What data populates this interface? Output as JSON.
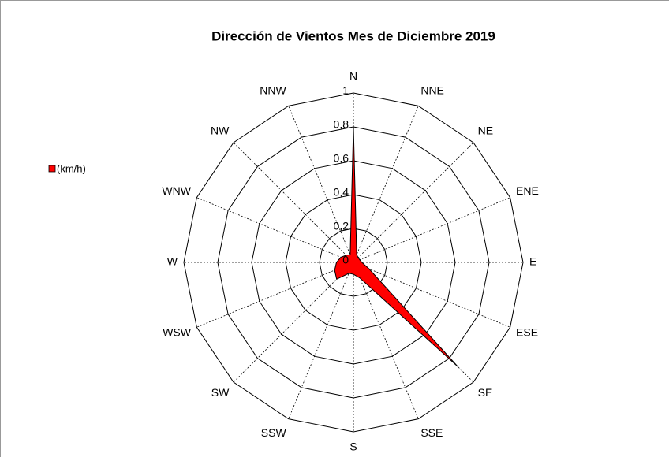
{
  "chart_data": {
    "type": "radar",
    "title": "Dirección de Vientos Mes de Diciembre 2019",
    "categories": [
      "N",
      "NNE",
      "NE",
      "ENE",
      "E",
      "ESE",
      "SE",
      "SSE",
      "S",
      "SSW",
      "SW",
      "WSW",
      "W",
      "WNW",
      "NW",
      "NNW"
    ],
    "series": [
      {
        "name": "(km/h)",
        "color": "#ff0000",
        "values": [
          0.8,
          0.05,
          0.04,
          0.04,
          0.05,
          0.1,
          0.87,
          0.1,
          0.07,
          0.07,
          0.14,
          0.12,
          0.1,
          0.08,
          0.06,
          0.05
        ]
      }
    ],
    "ylim": [
      0,
      1
    ],
    "yticks": [
      0,
      {
        "value": 0.2,
        "label": "0,2"
      },
      {
        "value": 0.4,
        "label": "0,4"
      },
      {
        "value": 0.6,
        "label": "0,6"
      },
      {
        "value": 0.8,
        "label": "0,8"
      },
      1
    ],
    "legend": "left"
  }
}
